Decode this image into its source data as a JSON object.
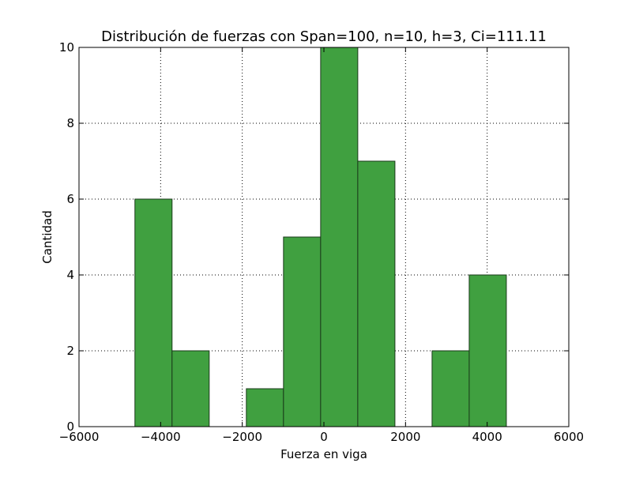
{
  "chart_data": {
    "type": "bar",
    "title": "Distribución de fuerzas con Span=100, n=10, h=3, Ci=111.11",
    "xlabel": "Fuerza en viga",
    "ylabel": "Cantidad",
    "xlim": [
      -6000,
      6000
    ],
    "ylim": [
      0,
      10
    ],
    "xticks": [
      "−6000",
      "−4000",
      "−2000",
      "0",
      "2000",
      "4000",
      "6000"
    ],
    "yticks": [
      "0",
      "2",
      "4",
      "6",
      "8",
      "10"
    ],
    "grid": true,
    "bar_color": "#40a040",
    "edge_color": "#1a3a1a",
    "bins": [
      {
        "x0": -4630,
        "x1": -3720,
        "value": 6
      },
      {
        "x0": -3720,
        "x1": -2810,
        "value": 2
      },
      {
        "x0": -2810,
        "x1": -1900,
        "value": 0
      },
      {
        "x0": -1900,
        "x1": -990,
        "value": 1
      },
      {
        "x0": -990,
        "x1": -80,
        "value": 5
      },
      {
        "x0": -80,
        "x1": 830,
        "value": 10
      },
      {
        "x0": 830,
        "x1": 1740,
        "value": 7
      },
      {
        "x0": 1740,
        "x1": 2650,
        "value": 0
      },
      {
        "x0": 2650,
        "x1": 3560,
        "value": 2
      },
      {
        "x0": 3560,
        "x1": 4470,
        "value": 4
      }
    ]
  }
}
